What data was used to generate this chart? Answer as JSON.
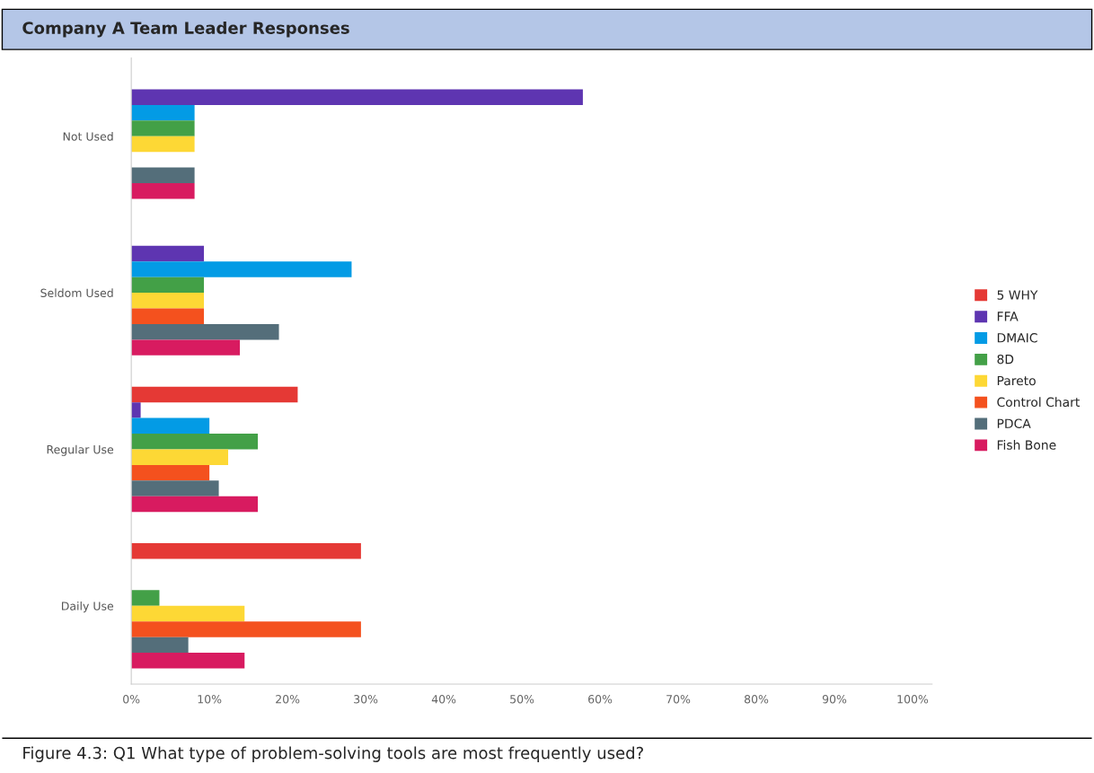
{
  "chart_data": {
    "type": "bar",
    "orientation": "horizontal",
    "title": "Company A Team Leader Responses",
    "categories": [
      "Not Used",
      "Seldom Used",
      "Regular Use",
      "Daily Use"
    ],
    "series": [
      {
        "name": "5 WHY",
        "color": "#e53935",
        "values": [
          null,
          null,
          21.3,
          29.4
        ]
      },
      {
        "name": "FFA",
        "color": "#5e35b1",
        "values": [
          57.8,
          9.3,
          1.2,
          null
        ]
      },
      {
        "name": "DMAIC",
        "color": "#039be5",
        "values": [
          8.1,
          28.2,
          10,
          null
        ]
      },
      {
        "name": "8D",
        "color": "#43a047",
        "values": [
          8.1,
          9.3,
          16.2,
          3.6
        ]
      },
      {
        "name": "Pareto",
        "color": "#fdd835",
        "values": [
          8.1,
          9.3,
          12.4,
          14.5
        ]
      },
      {
        "name": "Control Chart",
        "color": "#f4511e",
        "values": [
          null,
          9.3,
          10,
          29.4
        ]
      },
      {
        "name": "PDCA",
        "color": "#546e7a",
        "values": [
          8.1,
          18.9,
          11.2,
          7.3
        ]
      },
      {
        "name": "Fish Bone",
        "color": "#d81b60",
        "values": [
          8.1,
          13.9,
          16.2,
          14.5
        ]
      }
    ],
    "xlim": [
      0,
      102.5
    ],
    "xticks": [
      {
        "value": 0,
        "label": "0%"
      },
      {
        "value": 10,
        "label": "10%"
      },
      {
        "value": 20,
        "label": "20%"
      },
      {
        "value": 30,
        "label": "30%"
      },
      {
        "value": 40,
        "label": "40%"
      },
      {
        "value": 50,
        "label": "50%"
      },
      {
        "value": 60,
        "label": "60%"
      },
      {
        "value": 70,
        "label": "70%"
      },
      {
        "value": 80,
        "label": "80%"
      },
      {
        "value": 90,
        "label": "90%"
      },
      {
        "value": 100,
        "label": "100%"
      }
    ],
    "grid": false,
    "legend": "right",
    "annotations": [
      "Figure 4.3: Q1 What type of problem-solving tools are most frequently used?"
    ]
  }
}
